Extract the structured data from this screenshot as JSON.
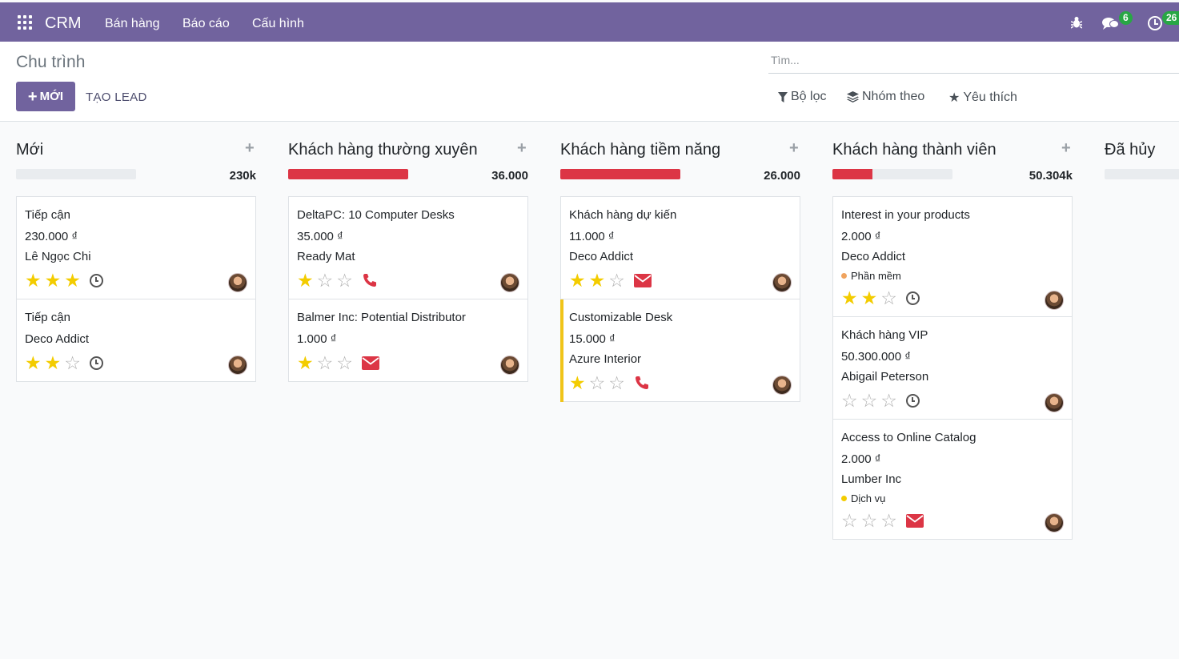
{
  "topbar": {
    "app_name": "CRM",
    "menu": [
      "Bán hàng",
      "Báo cáo",
      "Cấu hình"
    ],
    "messages_count": "6",
    "activities_count": "26",
    "bg_color": "#71639e"
  },
  "control": {
    "breadcrumb": "Chu trình",
    "new_label": "MỚI",
    "create_lead_label": "TẠO LEAD",
    "search_placeholder": "Tìm...",
    "filters_label": "Bộ lọc",
    "groupby_label": "Nhóm theo",
    "favorites_label": "Yêu thích"
  },
  "columns": [
    {
      "title": "Mới",
      "total": "230k",
      "progress": 0,
      "cards": [
        {
          "title": "Tiếp cận",
          "amount": "230.000 ₫",
          "customer": "Lê Ngọc Chi",
          "stars": 3,
          "activity": "clock"
        },
        {
          "title": "Tiếp cận",
          "amount": "",
          "customer": "Deco Addict",
          "stars": 2,
          "activity": "clock"
        }
      ]
    },
    {
      "title": "Khách hàng thường xuyên",
      "total": "36.000",
      "progress": 1,
      "cards": [
        {
          "title": "DeltaPC: 10 Computer Desks",
          "amount": "35.000 ₫",
          "customer": "Ready Mat",
          "stars": 1,
          "activity": "phone"
        },
        {
          "title": "Balmer Inc: Potential Distributor",
          "amount": "1.000 ₫",
          "customer": "",
          "stars": 1,
          "activity": "mail"
        }
      ]
    },
    {
      "title": "Khách hàng tiềm năng",
      "total": "26.000",
      "progress": 1,
      "cards": [
        {
          "title": "Khách hàng dự kiến",
          "amount": "11.000 ₫",
          "customer": "Deco Addict",
          "stars": 2,
          "activity": "mail"
        },
        {
          "title": "Customizable Desk",
          "amount": "15.000 ₫",
          "customer": "Azure Interior",
          "stars": 1,
          "activity": "phone",
          "accent": true
        }
      ]
    },
    {
      "title": "Khách hàng thành viên",
      "total": "50.304k",
      "progress": 0.33,
      "cards": [
        {
          "title": "Interest in your products",
          "amount": "2.000 ₫",
          "customer": "Deco Addict",
          "tag": "Phần mềm",
          "tag_color": "#f0a35e",
          "stars": 2,
          "activity": "clock"
        },
        {
          "title": "Khách hàng VIP",
          "amount": "50.300.000 ₫",
          "customer": "Abigail Peterson",
          "stars": 0,
          "activity": "clock"
        },
        {
          "title": "Access to Online Catalog",
          "amount": "2.000 ₫",
          "customer": "Lumber Inc",
          "tag": "Dịch vụ",
          "tag_color": "#f3cc00",
          "stars": 0,
          "activity": "mail"
        }
      ]
    },
    {
      "title": "Đã hủy",
      "total": "",
      "progress": 0,
      "cards": []
    }
  ]
}
